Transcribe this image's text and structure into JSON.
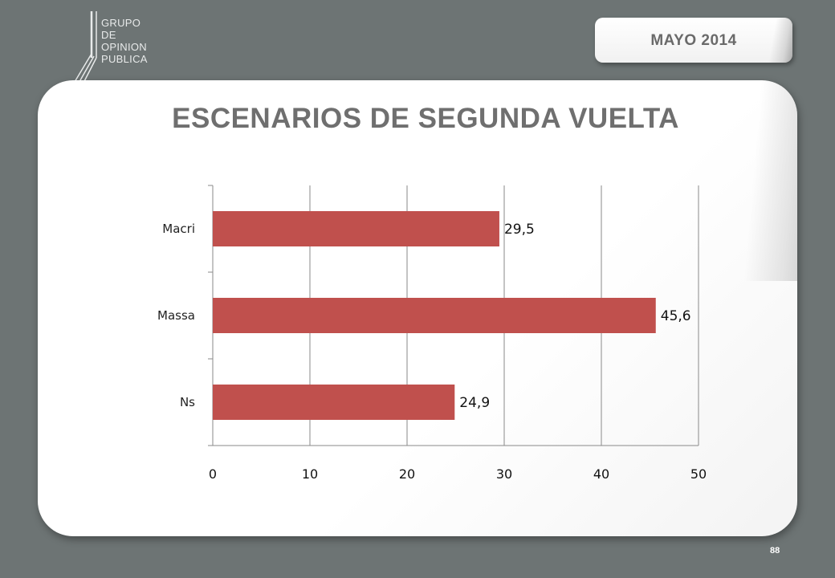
{
  "logo": {
    "lines": [
      "GRUPO",
      "DE",
      "OPINION",
      "PUBLICA"
    ]
  },
  "date_badge": "MAYO  2014",
  "title": "ESCENARIOS DE SEGUNDA VUELTA",
  "page_number": "88",
  "colors": {
    "bar": "#c0504d",
    "background": "#6d7474",
    "title": "#6f6f6f"
  },
  "chart_data": {
    "type": "bar",
    "orientation": "horizontal",
    "categories": [
      "Macri",
      "Massa",
      "Ns"
    ],
    "values": [
      29.5,
      45.6,
      24.9
    ],
    "value_labels": [
      "29,5",
      "45,6",
      "24,9"
    ],
    "x_ticks": [
      "0",
      "10",
      "20",
      "30",
      "40",
      "50"
    ],
    "xlim": [
      0,
      50
    ],
    "grid": true,
    "legend": "none"
  }
}
